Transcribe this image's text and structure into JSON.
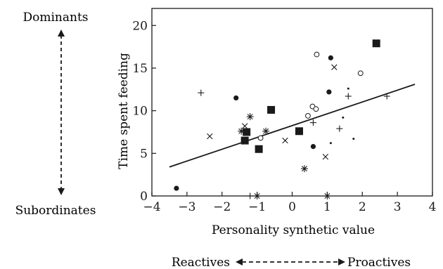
{
  "chart_data": {
    "type": "scatter",
    "xlabel": "Personality synthetic value",
    "ylabel": "Time spent feeding",
    "xlim": [
      -4,
      4
    ],
    "ylim": [
      0,
      22
    ],
    "xticks": [
      -4,
      -3,
      -2,
      -1,
      0,
      1,
      2,
      3,
      4
    ],
    "yticks": [
      0,
      5,
      10,
      15,
      20
    ],
    "grid": false,
    "legend": "none",
    "series": [
      {
        "marker": "filled-circle",
        "points": [
          [
            -3.3,
            0.9
          ],
          [
            -1.6,
            11.5
          ],
          [
            0.6,
            5.8
          ],
          [
            1.05,
            12.2
          ],
          [
            1.1,
            16.2
          ]
        ]
      },
      {
        "marker": "open-circle",
        "points": [
          [
            -0.9,
            6.8
          ],
          [
            0.45,
            9.4
          ],
          [
            0.58,
            10.5
          ],
          [
            0.68,
            10.2
          ],
          [
            0.7,
            16.6
          ],
          [
            1.95,
            14.4
          ]
        ]
      },
      {
        "marker": "filled-square",
        "points": [
          [
            -1.35,
            6.5
          ],
          [
            -1.3,
            7.5
          ],
          [
            -0.95,
            5.5
          ],
          [
            -0.6,
            10.1
          ],
          [
            0.2,
            7.6
          ],
          [
            2.4,
            17.9
          ]
        ]
      },
      {
        "marker": "plus",
        "points": [
          [
            -2.6,
            12.1
          ],
          [
            -1.2,
            0.0
          ],
          [
            0.6,
            8.6
          ],
          [
            1.35,
            7.9
          ],
          [
            1.6,
            11.7
          ],
          [
            2.7,
            11.7
          ]
        ]
      },
      {
        "marker": "cross",
        "points": [
          [
            -2.35,
            7.0
          ],
          [
            -1.35,
            8.2
          ],
          [
            -0.2,
            6.5
          ],
          [
            0.95,
            4.6
          ],
          [
            1.2,
            15.1
          ]
        ]
      },
      {
        "marker": "asterisk",
        "points": [
          [
            -1.45,
            7.6
          ],
          [
            -1.2,
            9.3
          ],
          [
            -0.75,
            7.6
          ],
          [
            -1.0,
            0.0
          ],
          [
            0.35,
            3.2
          ],
          [
            1.0,
            0.0
          ]
        ]
      },
      {
        "marker": "dot",
        "points": [
          [
            1.1,
            6.2
          ],
          [
            1.45,
            9.2
          ],
          [
            1.6,
            12.6
          ],
          [
            1.75,
            6.7
          ]
        ]
      }
    ],
    "trendline": {
      "x": [
        -3.5,
        3.5
      ],
      "y": [
        3.4,
        13.1
      ]
    }
  },
  "annotations": {
    "dominants": "Dominants",
    "subordinates": "Subordinates",
    "reactives": "Reactives",
    "proactives": "Proactives"
  }
}
